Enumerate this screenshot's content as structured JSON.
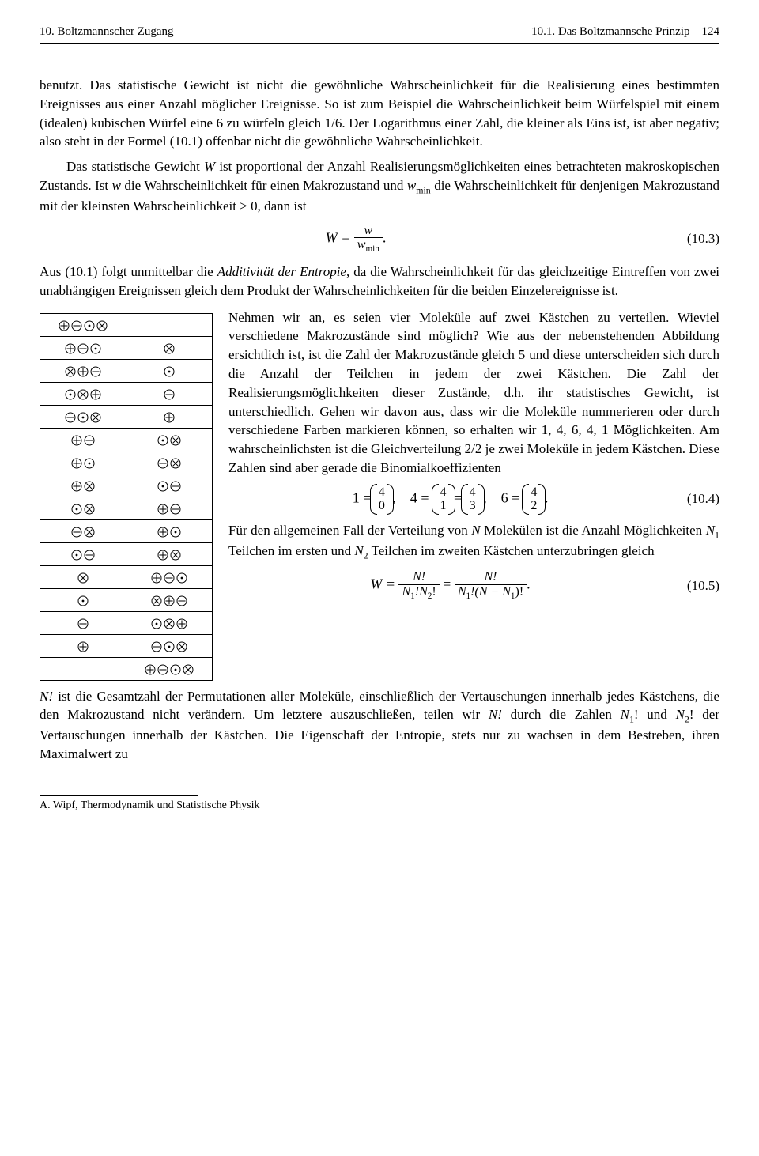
{
  "header": {
    "left": "10. Boltzmannscher Zugang",
    "right_section": "10.1. Das Boltzmannsche Prinzip",
    "page": "124"
  },
  "para1_a": "benutzt. Das statistische Gewicht ist nicht die gewöhnliche Wahrscheinlichkeit für die Realisierung eines bestimmten Ereignisses aus einer Anzahl möglicher Ereignisse. So ist zum Beispiel die Wahrscheinlichkeit beim Würfelspiel mit einem (idealen) kubischen Würfel eine ",
  "para1_six": "6",
  "para1_b": " zu würfeln gleich ",
  "para1_frac": "1/6",
  "para1_c": ". Der Logarithmus einer Zahl, die kleiner als Eins ist, ist aber negativ; also steht in der Formel (10.1) offenbar nicht die gewöhnliche Wahrscheinlichkeit.",
  "para2_a": "Das statistische Gewicht ",
  "para2_W": "W",
  "para2_b": " ist proportional der Anzahl Realisierungsmöglichkeiten eines betrachteten makroskopischen Zustands. Ist ",
  "para2_w": "w",
  "para2_c": " die Wahrscheinlichkeit für einen Makrozustand und ",
  "para2_wmin": "w",
  "para2_wmin_sub": "min",
  "para2_d": " die Wahrscheinlichkeit für denjenigen Makrozustand mit der kleinsten Wahrscheinlichkeit ",
  "para2_gt0": "> 0",
  "para2_e": ", dann ist",
  "eq103": {
    "lhs": "W = ",
    "num": "w",
    "den_sym": "w",
    "den_sub": "min",
    "tail": ".",
    "num_label": "(10.3)"
  },
  "para3_a": "Aus (10.1) folgt unmittelbar die ",
  "para3_ital": "Additivität der Entropie",
  "para3_b": ", da die Wahrscheinlichkeit für das gleichzeitige Eintreffen von zwei unabhängigen Ereignissen gleich dem Produkt der Wahrscheinlichkeiten für die beiden Einzelereignisse ist.",
  "symbols": {
    "plus": {
      "name": "circled-plus-icon"
    },
    "minus": {
      "name": "circled-minus-icon"
    },
    "dot": {
      "name": "circled-dot-icon"
    },
    "times": {
      "name": "circled-times-icon"
    }
  },
  "table": [
    [
      [
        "plus",
        "minus",
        "dot",
        "times"
      ],
      []
    ],
    [
      [
        "plus",
        "minus",
        "dot"
      ],
      [
        "times"
      ]
    ],
    [
      [
        "times",
        "plus",
        "minus"
      ],
      [
        "dot"
      ]
    ],
    [
      [
        "dot",
        "times",
        "plus"
      ],
      [
        "minus"
      ]
    ],
    [
      [
        "minus",
        "dot",
        "times"
      ],
      [
        "plus"
      ]
    ],
    [
      [
        "plus",
        "minus"
      ],
      [
        "dot",
        "times"
      ]
    ],
    [
      [
        "plus",
        "dot"
      ],
      [
        "minus",
        "times"
      ]
    ],
    [
      [
        "plus",
        "times"
      ],
      [
        "dot",
        "minus"
      ]
    ],
    [
      [
        "dot",
        "times"
      ],
      [
        "plus",
        "minus"
      ]
    ],
    [
      [
        "minus",
        "times"
      ],
      [
        "plus",
        "dot"
      ]
    ],
    [
      [
        "dot",
        "minus"
      ],
      [
        "plus",
        "times"
      ]
    ],
    [
      [
        "times"
      ],
      [
        "plus",
        "minus",
        "dot"
      ]
    ],
    [
      [
        "dot"
      ],
      [
        "times",
        "plus",
        "minus"
      ]
    ],
    [
      [
        "minus"
      ],
      [
        "dot",
        "times",
        "plus"
      ]
    ],
    [
      [
        "plus"
      ],
      [
        "minus",
        "dot",
        "times"
      ]
    ],
    [
      [],
      [
        "plus",
        "minus",
        "dot",
        "times"
      ]
    ]
  ],
  "right1_a": "Nehmen wir an, es seien vier Moleküle auf zwei Kästchen zu verteilen. Wieviel verschiedene Makrozustände sind möglich? Wie aus der nebenstehenden Abbildung ersichtlich ist, ist die Zahl der Makrozustände gleich ",
  "right1_five": "5",
  "right1_b": " und diese unterscheiden sich durch die Anzahl der Teilchen in jedem der zwei Kästchen. Die Zahl der Realisierungsmöglichkeiten dieser Zustände, d.h. ihr statistisches Gewicht, ist unterschiedlich. Gehen wir davon aus, dass wir die Moleküle nummerieren oder durch verschiedene Farben markieren können, so erhalten wir ",
  "right1_nums": "1, 4, 6, 4, 1",
  "right1_c": " Möglichkeiten. Am wahrscheinlichsten ist die Gleichverteilung ",
  "right1_22": "2/2",
  "right1_d": " je zwei Moleküle in jedem Kästchen. Diese Zahlen sind aber gerade die Binomialkoeffizienten",
  "eq104": {
    "pieces": {
      "p1": "1 = ",
      "b1_top": "4",
      "b1_bot": "0",
      "comma1": ",    4 = ",
      "b2_top": "4",
      "b2_bot": "1",
      "eq": " = ",
      "b3_top": "4",
      "b3_bot": "3",
      "comma2": ",    6 = ",
      "b4_top": "4",
      "b4_bot": "2",
      "tail": "."
    },
    "num_label": "(10.4)"
  },
  "right2_a": "Für den allgemeinen Fall der Verteilung von ",
  "right2_N": "N",
  "right2_b": " Molekülen ist die Anzahl Möglichkeiten ",
  "right2_N1": "N",
  "right2_N1sub": "1",
  "right2_c": " Teilchen im ersten und ",
  "right2_N2": "N",
  "right2_N2sub": "2",
  "right2_d": " Teilchen im zweiten Kästchen unterzubringen gleich",
  "eq105": {
    "lhs": "W = ",
    "num1": "N!",
    "den1_a": "N",
    "den1_as": "1",
    "den1_b": "!N",
    "den1_bs": "2",
    "den1_c": "!",
    "mid": " = ",
    "num2": "N!",
    "den2_a": "N",
    "den2_as": "1",
    "den2_b": "!(N − N",
    "den2_bs": "1",
    "den2_c": ")!",
    "tail": ".",
    "num_label": "(10.5)"
  },
  "para4_a": "N!",
  "para4_b": " ist die Gesamtzahl der Permutationen aller Moleküle, einschließlich der Vertauschungen innerhalb jedes Kästchens, die den Makrozustand nicht verändern. Um letztere auszuschließen, teilen wir ",
  "para4_c": "N!",
  "para4_d": " durch die Zahlen ",
  "para4_e": "N",
  "para4_e_sub": "1",
  "para4_f": "! und ",
  "para4_g": "N",
  "para4_g_sub": "2",
  "para4_h": "! der Vertauschungen innerhalb der Kästchen. Die Eigenschaft der Entropie, stets nur zu wachsen in dem Bestreben, ihren Maximalwert zu",
  "footer": "A. Wipf, Thermodynamik und Statistische Physik"
}
